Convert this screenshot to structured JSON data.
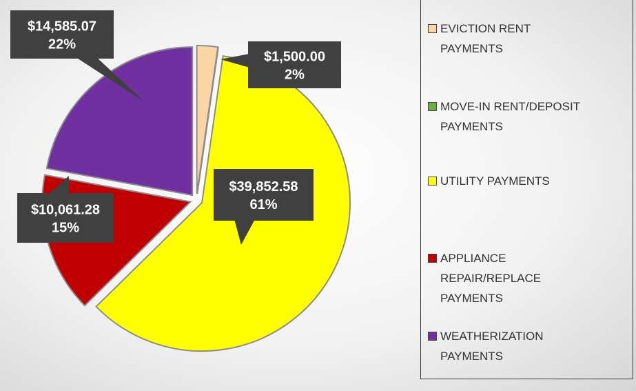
{
  "chart_data": {
    "type": "pie",
    "categories": [
      "EVICTION RENT PAYMENTS",
      "MOVE-IN RENT/DEPOSIT PAYMENTS",
      "UTILITY PAYMENTS",
      "APPLIANCE REPAIR/REPLACE PAYMENTS",
      "WEATHERIZATION PAYMENTS"
    ],
    "values": [
      1500.0,
      0,
      39852.58,
      10061.28,
      14585.07
    ],
    "value_labels": [
      "$1,500.00",
      null,
      "$39,852.58",
      "$10,061.28",
      "$14,585.07"
    ],
    "percent_labels": [
      "2%",
      null,
      "61%",
      "15%",
      "22%"
    ],
    "colors": [
      "#fcd5a5",
      "#70ad47",
      "#ffff00",
      "#c00000",
      "#7030a0"
    ],
    "legend": "right"
  }
}
